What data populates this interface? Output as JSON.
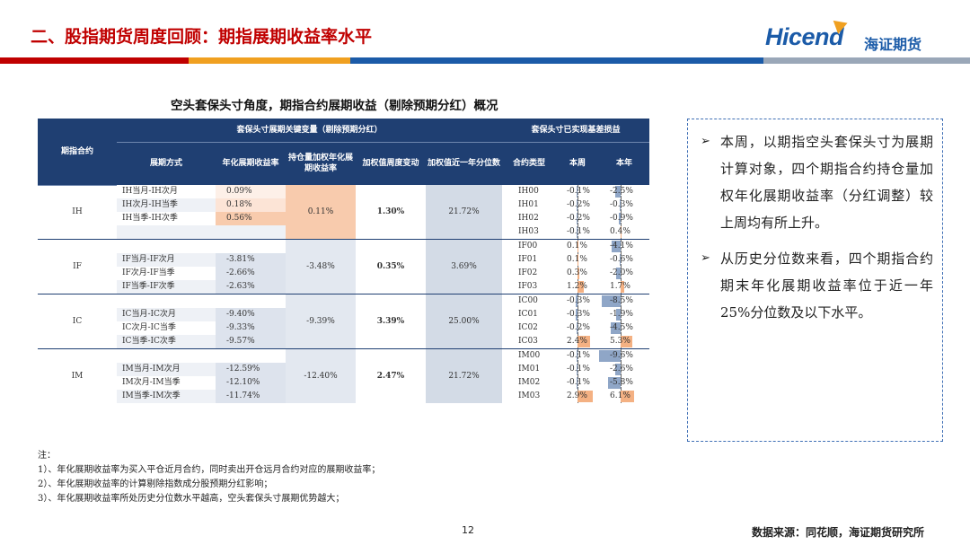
{
  "header": {
    "title": "二、股指期货周度回顾：期指展期收益率水平",
    "logo_en": "Hicend",
    "logo_cn": "海证期货",
    "bar_colors": [
      "#c00000",
      "#f0a020",
      "#1b5ba8",
      "#9aa7b8"
    ]
  },
  "subtitle": "空头套保头寸角度，期指合约展期收益（剔除预期分红）概况",
  "table": {
    "group_headers": {
      "key_vars": "套保头寸展期关键变量（剔除预期分红）",
      "realized": "套保头寸已实现基差损益"
    },
    "col_headers": {
      "contract": "期指合约",
      "method": "展期方式",
      "ann_yield": "年化展期收益率",
      "oi_weighted": "持仓量加权年化展期收益率",
      "weekly_change": "加权值周度变动",
      "pct_1y": "加权值近一年分位数",
      "type": "合约类型",
      "week": "本周",
      "ytd": "本年"
    },
    "groups": [
      {
        "name": "IH",
        "weighted": "0.11%",
        "change": "1.30%",
        "percentile": "21.72%",
        "rows": [
          {
            "method": "IH当月-IH次月",
            "yield": "0.09%",
            "yield_level": 0.09,
            "code": "IH00",
            "week": "-0.1%",
            "week_v": -0.1,
            "ytd": "-2.5%",
            "ytd_v": -2.5
          },
          {
            "method": "IH次月-IH当季",
            "yield": "0.18%",
            "yield_level": 0.18,
            "code": "IH01",
            "week": "-0.2%",
            "week_v": -0.2,
            "ytd": "-0.3%",
            "ytd_v": -0.3
          },
          {
            "method": "IH当季-IH次季",
            "yield": "0.56%",
            "yield_level": 0.56,
            "code": "IH02",
            "week": "-0.2%",
            "week_v": -0.2,
            "ytd": "-0.9%",
            "ytd_v": -0.9
          },
          {
            "method": "",
            "yield": "",
            "yield_level": 0,
            "code": "IH03",
            "week": "-0.1%",
            "week_v": -0.1,
            "ytd": "0.4%",
            "ytd_v": 0.4
          }
        ]
      },
      {
        "name": "IF",
        "weighted": "-3.48%",
        "change": "0.35%",
        "percentile": "3.69%",
        "rows": [
          {
            "method": "",
            "yield": "",
            "yield_level": 0,
            "code": "IF00",
            "week": "0.1%",
            "week_v": 0.1,
            "ytd": "-4.1%",
            "ytd_v": -4.1
          },
          {
            "method": "IF当月-IF次月",
            "yield": "-3.81%",
            "yield_level": -3.81,
            "code": "IF01",
            "week": "0.1%",
            "week_v": 0.1,
            "ytd": "-0.6%",
            "ytd_v": -0.6
          },
          {
            "method": "IF次月-IF当季",
            "yield": "-2.66%",
            "yield_level": -2.66,
            "code": "IF02",
            "week": "0.3%",
            "week_v": 0.3,
            "ytd": "-2.0%",
            "ytd_v": -2.0
          },
          {
            "method": "IF当季-IF次季",
            "yield": "-2.63%",
            "yield_level": -2.63,
            "code": "IF03",
            "week": "1.2%",
            "week_v": 1.2,
            "ytd": "1.7%",
            "ytd_v": 1.7
          }
        ]
      },
      {
        "name": "IC",
        "weighted": "-9.39%",
        "change": "3.39%",
        "percentile": "25.00%",
        "rows": [
          {
            "method": "",
            "yield": "",
            "yield_level": 0,
            "code": "IC00",
            "week": "-0.3%",
            "week_v": -0.3,
            "ytd": "-8.5%",
            "ytd_v": -8.5
          },
          {
            "method": "IC当月-IC次月",
            "yield": "-9.40%",
            "yield_level": -9.4,
            "code": "IC01",
            "week": "-0.3%",
            "week_v": -0.3,
            "ytd": "-1.9%",
            "ytd_v": -1.9
          },
          {
            "method": "IC次月-IC当季",
            "yield": "-9.33%",
            "yield_level": -9.33,
            "code": "IC02",
            "week": "-0.2%",
            "week_v": -0.2,
            "ytd": "-4.5%",
            "ytd_v": -4.5
          },
          {
            "method": "IC当季-IC次季",
            "yield": "-9.57%",
            "yield_level": -9.57,
            "code": "IC03",
            "week": "2.4%",
            "week_v": 2.4,
            "ytd": "5.3%",
            "ytd_v": 5.3
          }
        ]
      },
      {
        "name": "IM",
        "weighted": "-12.40%",
        "change": "2.47%",
        "percentile": "21.72%",
        "rows": [
          {
            "method": "",
            "yield": "",
            "yield_level": 0,
            "code": "IM00",
            "week": "-0.1%",
            "week_v": -0.1,
            "ytd": "-9.6%",
            "ytd_v": -9.6
          },
          {
            "method": "IM当月-IM次月",
            "yield": "-12.59%",
            "yield_level": -12.59,
            "code": "IM01",
            "week": "-0.1%",
            "week_v": -0.1,
            "ytd": "-2.6%",
            "ytd_v": -2.6
          },
          {
            "method": "IM次月-IM当季",
            "yield": "-12.10%",
            "yield_level": -12.1,
            "code": "IM02",
            "week": "-0.1%",
            "week_v": -0.1,
            "ytd": "-5.8%",
            "ytd_v": -5.8
          },
          {
            "method": "IM当季-IM次季",
            "yield": "-11.74%",
            "yield_level": -11.74,
            "code": "IM03",
            "week": "2.9%",
            "week_v": 2.9,
            "ytd": "6.1%",
            "ytd_v": 6.1
          }
        ]
      }
    ]
  },
  "commentary": {
    "b1": "本周，以期指空头套保头寸为展期计算对象，四个期指合约持仓量加权年化展期收益率（分红调整）较上周均有所上升。",
    "b2": "从历史分位数来看，四个期指合约期末年化展期收益率位于近一年25%分位数及以下水平。"
  },
  "notes": {
    "title": "注：",
    "n1": "1）、年化展期收益率为买入平仓近月合约，同时卖出开仓远月合约对应的展期收益率；",
    "n2": "2）、年化展期收益率的计算剔除指数成分股预期分红影响；",
    "n3": "3）、年化展期收益率所处历史分位数水平越高，空头套保头寸展期优势越大；"
  },
  "footer": {
    "page": "12",
    "source": "数据来源：同花顺，海证期货研究所"
  }
}
